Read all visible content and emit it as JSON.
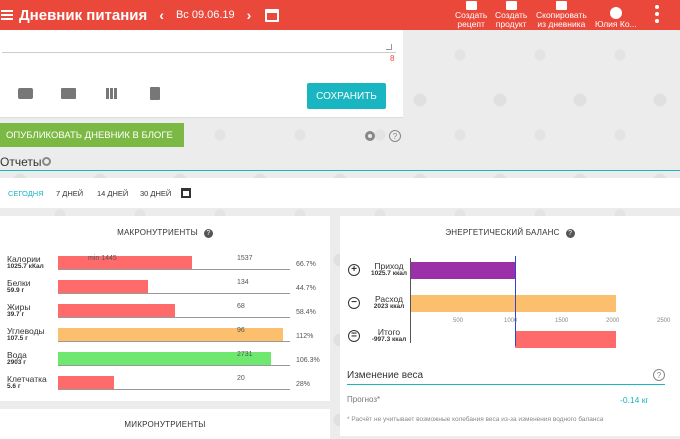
{
  "header": {
    "title": "Дневник питания",
    "date": "Вс 09.06.19",
    "actions": [
      {
        "line1": "Создать",
        "line2": "рецепт"
      },
      {
        "line1": "Создать",
        "line2": "продукт"
      },
      {
        "line1": "Скопировать",
        "line2": "из дневника"
      },
      {
        "line1": "Юлия Ко...",
        "line2": ""
      }
    ]
  },
  "entry": {
    "char_count": "8",
    "save_label": "СОХРАНИТЬ"
  },
  "publish_label": "ОПУБЛИКОВАТЬ ДНЕВНИК В БЛОГЕ",
  "reports": {
    "title": "Отчеты",
    "periods": [
      "СЕГОДНЯ",
      "7 ДНЕЙ",
      "14 ДНЕЙ",
      "30 ДНЕЙ"
    ],
    "active_period": 0
  },
  "macros": {
    "title": "МАКРОНУТРИЕНТЫ",
    "help": "?",
    "rows": [
      {
        "name": "Калории",
        "value": "1025.7 кКал",
        "amount": 1025.7,
        "norm": "1537",
        "min_label": "min 1445",
        "pct": "66.7%",
        "color": "#ff6b6b"
      },
      {
        "name": "Белки",
        "value": "59.9 г",
        "amount": 59.9,
        "norm": "134",
        "pct": "44.7%",
        "color": "#ff6b6b"
      },
      {
        "name": "Жиры",
        "value": "39.7 г",
        "amount": 39.7,
        "norm": "68",
        "pct": "58.4%",
        "color": "#ff6b6b"
      },
      {
        "name": "Углеводы",
        "value": "107.5 г",
        "amount": 107.5,
        "norm": "96",
        "pct": "112%",
        "color": "#fbbf6e"
      },
      {
        "name": "Вода",
        "value": "2903 г",
        "amount": 2903,
        "norm": "2731",
        "pct": "106.3%",
        "color": "#6ee86e"
      },
      {
        "name": "Клетчатка",
        "value": "5.6 г",
        "amount": 5.6,
        "norm": "20",
        "pct": "28%",
        "color": "#ff6b6b"
      }
    ]
  },
  "micros": {
    "title": "МИКРОНУТРИЕНТЫ"
  },
  "energy": {
    "title": "ЭНЕРГЕТИЧЕСКИЙ БАЛАНС",
    "help": "?",
    "rows": [
      {
        "sign": "+",
        "name": "Приход",
        "value": "1025.7 ккал",
        "amount": 1025.7,
        "color": "#9b30a8"
      },
      {
        "sign": "−",
        "name": "Расход",
        "value": "2023 ккал",
        "amount": 2023,
        "color": "#fbbf6e"
      },
      {
        "sign": "=",
        "name": "Итого",
        "value": "-997.3 ккал",
        "amount": -997.3,
        "color": "#ff6b6b"
      }
    ],
    "axis_ticks": [
      "500",
      "1000",
      "1500",
      "2000",
      "2500"
    ],
    "axis_max": 2500
  },
  "weight": {
    "title": "Изменение веса",
    "forecast_label": "Прогноз*",
    "forecast_value": "-0.14 кг",
    "note": "* Расчёт не учитывает возможные колебания веса из-за изменения водного баланса"
  }
}
